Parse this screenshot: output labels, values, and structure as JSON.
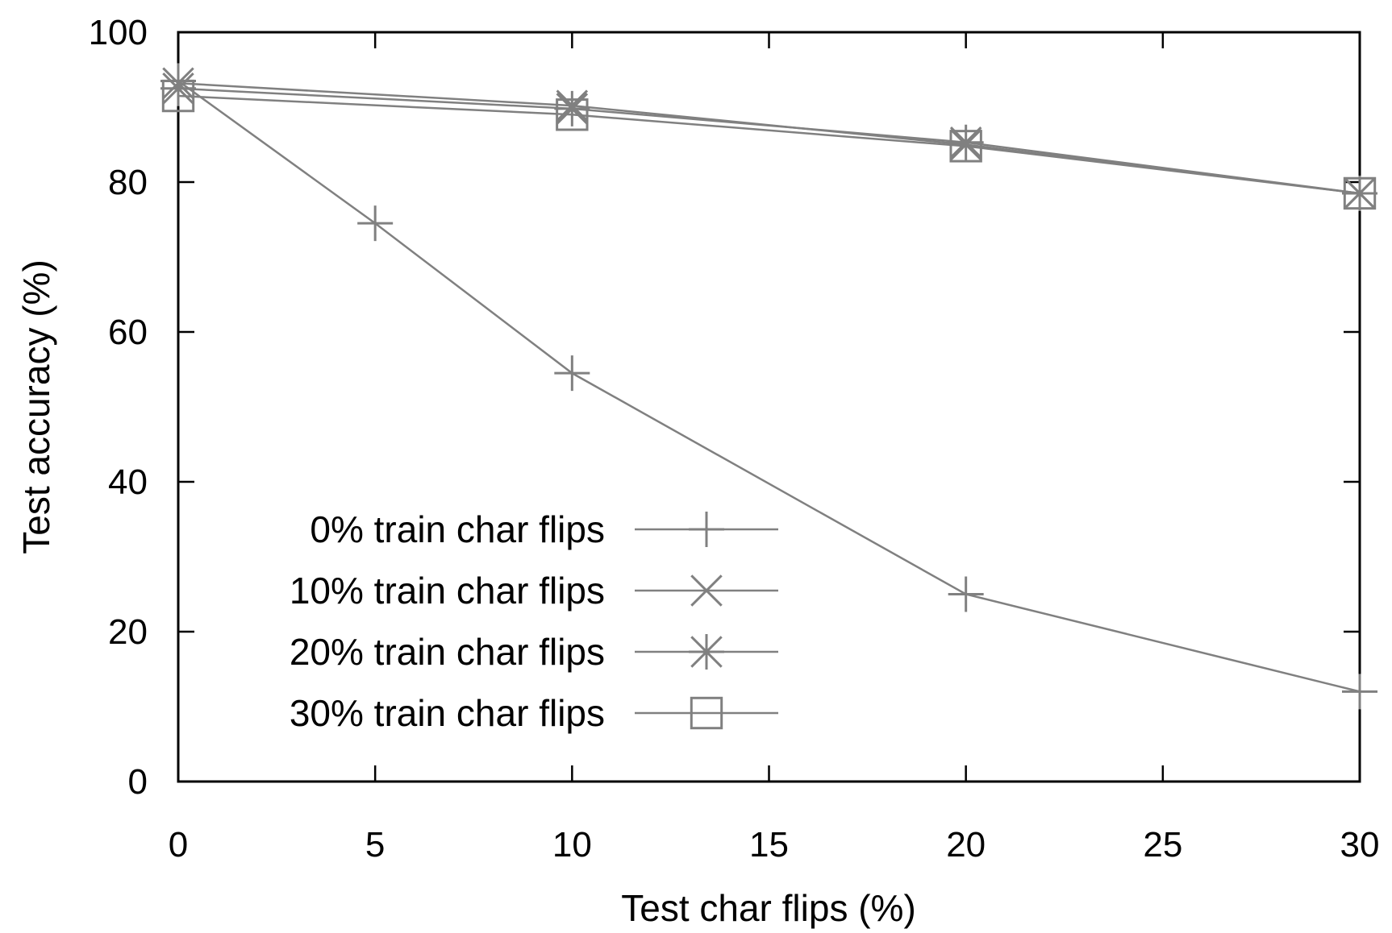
{
  "chart_data": {
    "type": "line",
    "title": "",
    "xlabel": "Test char flips (%)",
    "ylabel": "Test accuracy (%)",
    "xlim": [
      0,
      30
    ],
    "ylim": [
      0,
      100
    ],
    "x_ticks": [
      0,
      5,
      10,
      15,
      20,
      25,
      30
    ],
    "y_ticks": [
      0,
      20,
      40,
      60,
      80,
      100
    ],
    "grid": false,
    "legend_position": "bottom-left",
    "line_color": "#808080",
    "series": [
      {
        "name": "0% train char flips",
        "marker": "plus",
        "x": [
          0,
          5,
          10,
          20,
          30
        ],
        "y": [
          93.5,
          74.5,
          54.5,
          25,
          12
        ]
      },
      {
        "name": "10% train char flips",
        "marker": "cross",
        "x": [
          0,
          10,
          20,
          30
        ],
        "y": [
          93.2,
          90.2,
          85.0,
          78.5
        ]
      },
      {
        "name": "20% train char flips",
        "marker": "star",
        "x": [
          0,
          10,
          20,
          30
        ],
        "y": [
          92.5,
          89.8,
          85.3,
          78.5
        ]
      },
      {
        "name": "30% train char flips",
        "marker": "square",
        "x": [
          0,
          10,
          20,
          30
        ],
        "y": [
          91.5,
          89.0,
          84.8,
          78.5
        ]
      }
    ]
  }
}
